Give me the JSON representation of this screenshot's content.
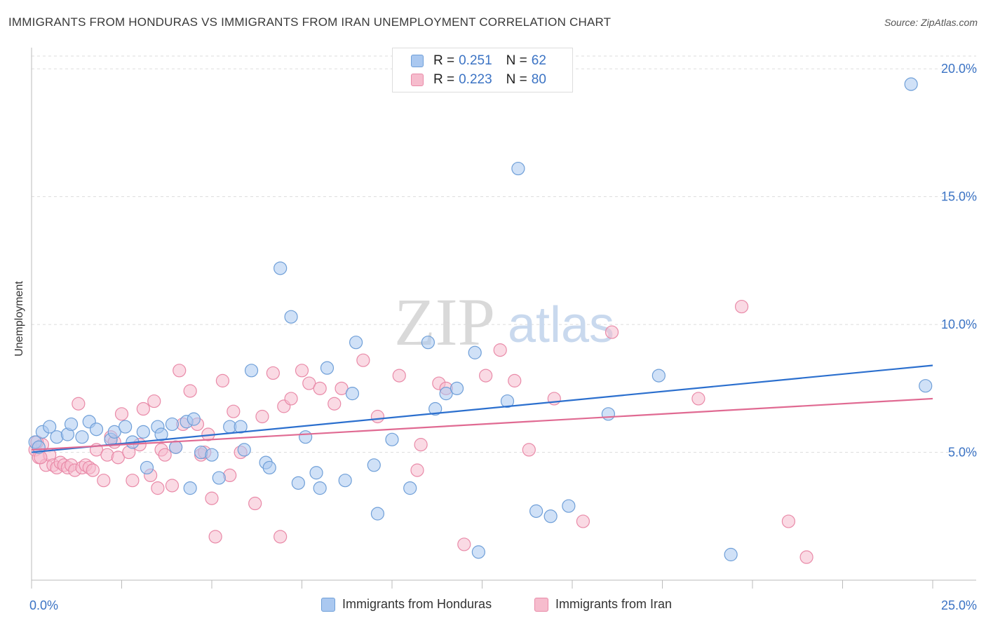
{
  "header": {
    "title": "IMMIGRANTS FROM HONDURAS VS IMMIGRANTS FROM IRAN UNEMPLOYMENT CORRELATION CHART",
    "source": "Source: ZipAtlas.com"
  },
  "watermark": {
    "zip": "ZIP",
    "atlas": "atlas"
  },
  "legend": {
    "rows": [
      {
        "r_label": "R =",
        "r_value": "0.251",
        "n_label": "N =",
        "n_value": "62"
      },
      {
        "r_label": "R =",
        "r_value": "0.223",
        "n_label": "N =",
        "n_value": "80"
      }
    ]
  },
  "colors": {
    "blue_fill": "#aac8f0",
    "blue_stroke": "#6f9fd8",
    "blue_line": "#2b6fce",
    "pink_fill": "#f6bccd",
    "pink_stroke": "#e98aa8",
    "pink_line": "#e06a92",
    "grid": "#dddddd",
    "axis_text": "#3b73c4"
  },
  "chart_data": {
    "type": "scatter",
    "title": "IMMIGRANTS FROM HONDURAS VS IMMIGRANTS FROM IRAN UNEMPLOYMENT CORRELATION CHART",
    "xlabel": "",
    "ylabel": "Unemployment",
    "xlim": [
      0,
      25
    ],
    "ylim": [
      0,
      20.5
    ],
    "x_tick_labels": [
      "0.0%",
      "25.0%"
    ],
    "y_ticks": [
      5,
      10,
      15,
      20
    ],
    "y_tick_labels": [
      "5.0%",
      "10.0%",
      "15.0%",
      "20.0%"
    ],
    "grid": true,
    "series": [
      {
        "name": "Immigrants from Honduras",
        "color": "blue",
        "trend": [
          [
            0,
            5.0
          ],
          [
            25,
            8.4
          ]
        ],
        "points": [
          [
            0.1,
            5.4
          ],
          [
            0.3,
            5.8
          ],
          [
            0.5,
            6.0
          ],
          [
            0.7,
            5.6
          ],
          [
            1.0,
            5.7
          ],
          [
            1.1,
            6.1
          ],
          [
            1.4,
            5.6
          ],
          [
            1.6,
            6.2
          ],
          [
            1.8,
            5.9
          ],
          [
            2.2,
            5.5
          ],
          [
            2.3,
            5.8
          ],
          [
            2.6,
            6.0
          ],
          [
            2.8,
            5.4
          ],
          [
            3.1,
            5.8
          ],
          [
            3.2,
            4.4
          ],
          [
            3.5,
            6.0
          ],
          [
            3.6,
            5.7
          ],
          [
            3.9,
            6.1
          ],
          [
            4.0,
            5.2
          ],
          [
            4.3,
            6.2
          ],
          [
            4.4,
            3.6
          ],
          [
            4.5,
            6.3
          ],
          [
            4.7,
            5.0
          ],
          [
            5.0,
            4.9
          ],
          [
            5.2,
            4.0
          ],
          [
            5.5,
            6.0
          ],
          [
            5.8,
            6.0
          ],
          [
            5.9,
            5.1
          ],
          [
            6.1,
            8.2
          ],
          [
            6.5,
            4.6
          ],
          [
            6.6,
            4.4
          ],
          [
            6.9,
            12.2
          ],
          [
            7.2,
            10.3
          ],
          [
            7.4,
            3.8
          ],
          [
            7.6,
            5.6
          ],
          [
            7.9,
            4.2
          ],
          [
            8.0,
            3.6
          ],
          [
            8.2,
            8.3
          ],
          [
            8.7,
            3.9
          ],
          [
            8.9,
            7.3
          ],
          [
            9.0,
            9.3
          ],
          [
            9.5,
            4.5
          ],
          [
            9.6,
            2.6
          ],
          [
            10.0,
            5.5
          ],
          [
            10.5,
            3.6
          ],
          [
            11.0,
            9.3
          ],
          [
            11.2,
            6.7
          ],
          [
            11.5,
            7.3
          ],
          [
            11.8,
            7.5
          ],
          [
            12.3,
            8.9
          ],
          [
            12.4,
            1.1
          ],
          [
            13.2,
            7.0
          ],
          [
            13.5,
            16.1
          ],
          [
            14.0,
            2.7
          ],
          [
            14.4,
            2.5
          ],
          [
            14.9,
            2.9
          ],
          [
            16.0,
            6.5
          ],
          [
            17.4,
            8.0
          ],
          [
            19.4,
            1.0
          ],
          [
            24.4,
            19.4
          ],
          [
            24.8,
            7.6
          ],
          [
            0.2,
            5.2
          ]
        ]
      },
      {
        "name": "Immigrants from Iran",
        "color": "pink",
        "trend": [
          [
            0,
            5.1
          ],
          [
            25,
            7.1
          ]
        ],
        "points": [
          [
            0.1,
            5.1
          ],
          [
            0.2,
            4.8
          ],
          [
            0.3,
            5.3
          ],
          [
            0.4,
            4.5
          ],
          [
            0.5,
            4.9
          ],
          [
            0.6,
            4.5
          ],
          [
            0.7,
            4.4
          ],
          [
            0.8,
            4.6
          ],
          [
            0.9,
            4.5
          ],
          [
            1.0,
            4.4
          ],
          [
            1.1,
            4.5
          ],
          [
            1.2,
            4.3
          ],
          [
            1.3,
            6.9
          ],
          [
            1.4,
            4.4
          ],
          [
            1.5,
            4.5
          ],
          [
            1.6,
            4.4
          ],
          [
            1.7,
            4.3
          ],
          [
            1.8,
            5.1
          ],
          [
            2.0,
            3.9
          ],
          [
            2.1,
            4.9
          ],
          [
            2.2,
            5.6
          ],
          [
            2.4,
            4.8
          ],
          [
            2.5,
            6.5
          ],
          [
            2.7,
            5.0
          ],
          [
            2.8,
            3.9
          ],
          [
            3.0,
            5.3
          ],
          [
            3.1,
            6.7
          ],
          [
            3.3,
            4.1
          ],
          [
            3.4,
            7.0
          ],
          [
            3.6,
            5.1
          ],
          [
            3.7,
            4.9
          ],
          [
            3.9,
            3.7
          ],
          [
            4.0,
            5.2
          ],
          [
            4.1,
            8.2
          ],
          [
            4.2,
            6.1
          ],
          [
            4.4,
            7.4
          ],
          [
            4.6,
            6.1
          ],
          [
            4.7,
            4.9
          ],
          [
            4.9,
            5.7
          ],
          [
            5.0,
            3.2
          ],
          [
            5.1,
            1.7
          ],
          [
            5.3,
            7.8
          ],
          [
            5.5,
            4.1
          ],
          [
            5.6,
            6.6
          ],
          [
            5.8,
            5.0
          ],
          [
            6.2,
            3.0
          ],
          [
            6.4,
            6.4
          ],
          [
            6.7,
            8.1
          ],
          [
            6.9,
            1.7
          ],
          [
            7.0,
            6.8
          ],
          [
            7.2,
            7.1
          ],
          [
            7.5,
            8.2
          ],
          [
            7.7,
            7.7
          ],
          [
            8.0,
            7.5
          ],
          [
            8.4,
            6.9
          ],
          [
            8.6,
            7.5
          ],
          [
            9.2,
            8.6
          ],
          [
            9.6,
            6.4
          ],
          [
            10.2,
            8.0
          ],
          [
            10.7,
            4.3
          ],
          [
            10.8,
            5.3
          ],
          [
            11.3,
            7.7
          ],
          [
            11.5,
            7.5
          ],
          [
            12.0,
            1.4
          ],
          [
            12.6,
            8.0
          ],
          [
            13.0,
            9.0
          ],
          [
            13.4,
            7.8
          ],
          [
            13.8,
            5.1
          ],
          [
            14.5,
            7.1
          ],
          [
            15.3,
            2.3
          ],
          [
            16.1,
            9.7
          ],
          [
            18.5,
            7.1
          ],
          [
            19.7,
            10.7
          ],
          [
            21.0,
            2.3
          ],
          [
            21.5,
            0.9
          ],
          [
            0.15,
            5.4
          ],
          [
            0.25,
            4.8
          ],
          [
            2.3,
            5.4
          ],
          [
            3.5,
            3.6
          ],
          [
            4.8,
            5.0
          ]
        ]
      }
    ]
  },
  "bottom_legend": {
    "items": [
      {
        "label": "Immigrants from Honduras"
      },
      {
        "label": "Immigrants from Iran"
      }
    ]
  }
}
